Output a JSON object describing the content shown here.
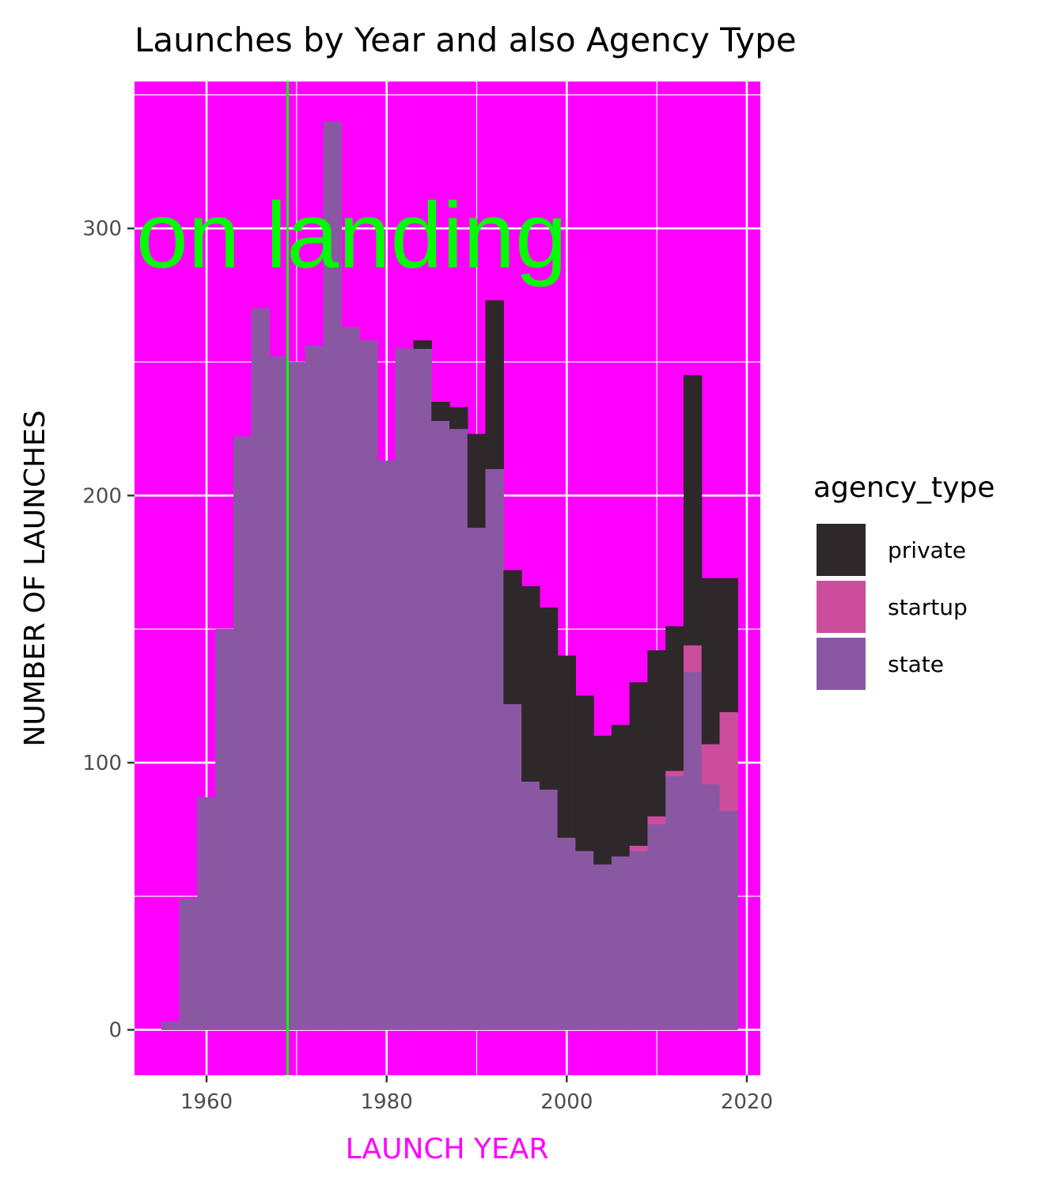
{
  "chart_data": {
    "type": "bar",
    "stacked": true,
    "title": "Launches by Year and also Agency Type",
    "xlabel": "LAUNCH YEAR",
    "ylabel": "NUMBER OF LAUNCHES",
    "xlim": [
      1952,
      2021.5
    ],
    "ylim": [
      -17,
      355
    ],
    "x_ticks": [
      1960,
      1980,
      2000,
      2020
    ],
    "y_ticks": [
      0,
      100,
      200,
      300
    ],
    "bin_width": 2,
    "bin_starts": [
      1955,
      1957,
      1959,
      1961,
      1963,
      1965,
      1967,
      1969,
      1971,
      1973,
      1975,
      1977,
      1979,
      1981,
      1983,
      1985,
      1987,
      1989,
      1991,
      1993,
      1995,
      1997,
      1999,
      2001,
      2003,
      2005,
      2007,
      2009,
      2011,
      2013,
      2015,
      2017
    ],
    "stack_order": [
      "state",
      "startup",
      "private"
    ],
    "series": [
      {
        "name": "private",
        "color": "#2e282a",
        "values": [
          0,
          0,
          0,
          0,
          0,
          0,
          0,
          0,
          0,
          0,
          0,
          0,
          0,
          0,
          3,
          7,
          8,
          35,
          63,
          50,
          73,
          68,
          68,
          58,
          48,
          49,
          61,
          62,
          54,
          101,
          62,
          50
        ]
      },
      {
        "name": "startup",
        "color": "#cd4d9d",
        "values": [
          0,
          0,
          0,
          0,
          0,
          0,
          0,
          0,
          0,
          0,
          0,
          0,
          0,
          0,
          0,
          0,
          0,
          0,
          0,
          0,
          0,
          0,
          0,
          0,
          0,
          0,
          2,
          3,
          2,
          10,
          15,
          37
        ]
      },
      {
        "name": "state",
        "color": "#8a58a3",
        "values": [
          3,
          49,
          87,
          150,
          222,
          270,
          252,
          250,
          256,
          340,
          263,
          258,
          213,
          255,
          255,
          228,
          225,
          188,
          210,
          122,
          93,
          90,
          72,
          67,
          62,
          65,
          67,
          77,
          95,
          134,
          92,
          82
        ]
      }
    ],
    "legend_title": "agency_type",
    "legend_position": "right",
    "grid": true,
    "annotation_text": "on landing",
    "annotation_color": "#00ff00",
    "reference_line_x": 1969,
    "reference_line_color": "#00ff00",
    "panel_background": "#ff00ff",
    "grid_color": "#ffffff",
    "xlabel_color": "#ff00ff"
  }
}
